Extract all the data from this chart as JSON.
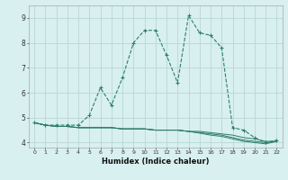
{
  "xlabel": "Humidex (Indice chaleur)",
  "x": [
    0,
    1,
    2,
    3,
    4,
    5,
    6,
    7,
    8,
    9,
    10,
    11,
    12,
    13,
    14,
    15,
    16,
    17,
    18,
    19,
    20,
    21,
    22
  ],
  "line1": [
    4.8,
    4.7,
    4.7,
    4.7,
    4.7,
    5.1,
    6.2,
    5.5,
    6.6,
    8.0,
    8.5,
    8.5,
    7.5,
    6.4,
    9.1,
    8.4,
    8.3,
    7.8,
    4.6,
    4.5,
    4.2,
    4.0,
    4.1
  ],
  "line2": [
    4.8,
    4.7,
    4.65,
    4.65,
    4.6,
    4.6,
    4.6,
    4.6,
    4.55,
    4.55,
    4.55,
    4.5,
    4.5,
    4.5,
    4.45,
    4.45,
    4.4,
    4.35,
    4.3,
    4.2,
    4.15,
    4.05,
    4.05
  ],
  "line3": [
    4.8,
    4.7,
    4.65,
    4.65,
    4.6,
    4.6,
    4.6,
    4.6,
    4.55,
    4.55,
    4.55,
    4.5,
    4.5,
    4.5,
    4.45,
    4.4,
    4.35,
    4.3,
    4.2,
    4.1,
    4.05,
    4.0,
    4.05
  ],
  "line4": [
    4.8,
    4.7,
    4.65,
    4.65,
    4.6,
    4.6,
    4.6,
    4.6,
    4.55,
    4.55,
    4.55,
    4.5,
    4.5,
    4.5,
    4.45,
    4.38,
    4.3,
    4.25,
    4.15,
    4.05,
    4.0,
    3.95,
    4.05
  ],
  "line_color": "#2e7d6e",
  "bg_color": "#d8f0ef",
  "grid_color": "#b8d8d5",
  "ylim": [
    3.8,
    9.5
  ],
  "xlim": [
    -0.5,
    22.5
  ],
  "yticks": [
    4,
    5,
    6,
    7,
    8,
    9
  ],
  "xticks": [
    0,
    1,
    2,
    3,
    4,
    5,
    6,
    7,
    8,
    9,
    10,
    11,
    12,
    13,
    14,
    15,
    16,
    17,
    18,
    19,
    20,
    21,
    22
  ]
}
